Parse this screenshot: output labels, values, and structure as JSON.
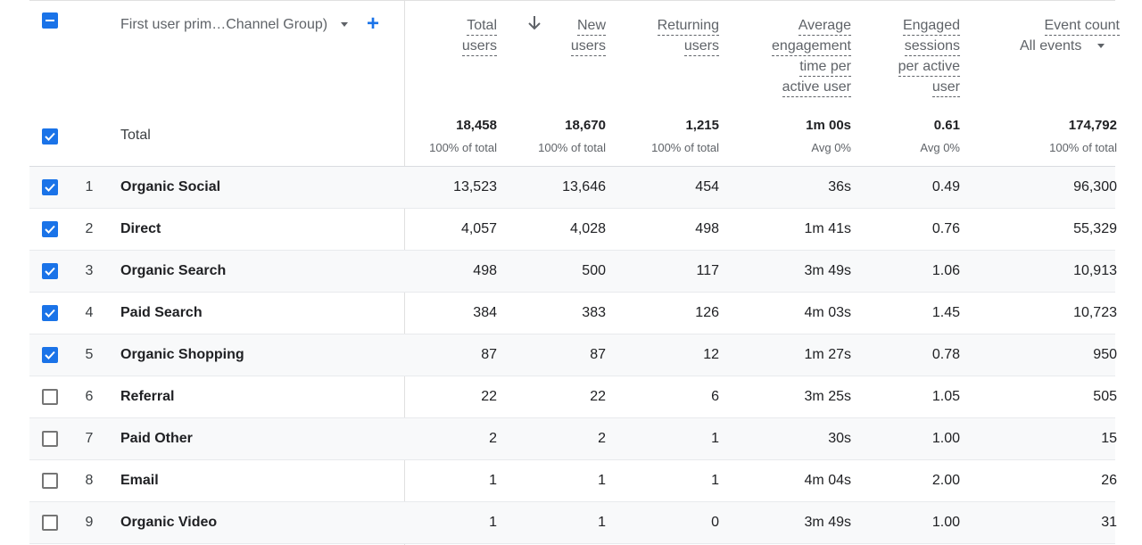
{
  "dimension": {
    "label": "First user prim…Channel Group)",
    "add_label": "+"
  },
  "columns": [
    {
      "key": "total_users",
      "lines": [
        "Total",
        "users"
      ]
    },
    {
      "key": "new_users",
      "lines": [
        "New",
        "users"
      ],
      "sorted": "descending"
    },
    {
      "key": "returning_users",
      "lines": [
        "Returning",
        "users"
      ]
    },
    {
      "key": "avg_engagement",
      "lines": [
        "Average",
        "engagement",
        "time per",
        "active user"
      ]
    },
    {
      "key": "engaged_sessions",
      "lines": [
        "Engaged",
        "sessions",
        "per active",
        "user"
      ]
    },
    {
      "key": "event_count",
      "lines": [
        "Event count"
      ],
      "selector": "All events"
    }
  ],
  "totals": {
    "label": "Total",
    "values": [
      "18,458",
      "18,670",
      "1,215",
      "1m 00s",
      "0.61",
      "174,792"
    ],
    "subs": [
      "100% of total",
      "100% of total",
      "100% of total",
      "Avg 0%",
      "Avg 0%",
      "100% of total"
    ]
  },
  "rows": [
    {
      "index": "1",
      "name": "Organic Social",
      "checked": true,
      "values": [
        "13,523",
        "13,646",
        "454",
        "36s",
        "0.49",
        "96,300"
      ]
    },
    {
      "index": "2",
      "name": "Direct",
      "checked": true,
      "values": [
        "4,057",
        "4,028",
        "498",
        "1m 41s",
        "0.76",
        "55,329"
      ]
    },
    {
      "index": "3",
      "name": "Organic Search",
      "checked": true,
      "values": [
        "498",
        "500",
        "117",
        "3m 49s",
        "1.06",
        "10,913"
      ]
    },
    {
      "index": "4",
      "name": "Paid Search",
      "checked": true,
      "values": [
        "384",
        "383",
        "126",
        "4m 03s",
        "1.45",
        "10,723"
      ]
    },
    {
      "index": "5",
      "name": "Organic Shopping",
      "checked": true,
      "values": [
        "87",
        "87",
        "12",
        "1m 27s",
        "0.78",
        "950"
      ]
    },
    {
      "index": "6",
      "name": "Referral",
      "checked": false,
      "values": [
        "22",
        "22",
        "6",
        "3m 25s",
        "1.05",
        "505"
      ]
    },
    {
      "index": "7",
      "name": "Paid Other",
      "checked": false,
      "values": [
        "2",
        "2",
        "1",
        "30s",
        "1.00",
        "15"
      ]
    },
    {
      "index": "8",
      "name": "Email",
      "checked": false,
      "values": [
        "1",
        "1",
        "1",
        "4m 04s",
        "2.00",
        "26"
      ]
    },
    {
      "index": "9",
      "name": "Organic Video",
      "checked": false,
      "values": [
        "1",
        "1",
        "0",
        "3m 49s",
        "1.00",
        "31"
      ]
    }
  ],
  "colors": {
    "accent": "#1a73e8",
    "text": "#202124",
    "muted": "#5f6368",
    "row_alt": "#f8f9fa",
    "divider": "#e0e0e0"
  }
}
